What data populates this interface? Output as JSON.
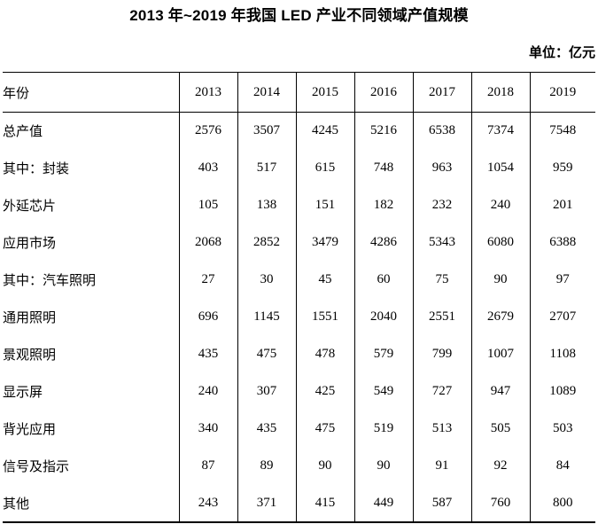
{
  "title": "2013 年~2019 年我国 LED 产业不同领域产值规模",
  "unit_label": "单位：亿元",
  "colors": {
    "text": "#000000",
    "border": "#000000",
    "background": "#ffffff"
  },
  "table": {
    "header": {
      "label": "年份",
      "years": [
        "2013",
        "2014",
        "2015",
        "2016",
        "2017",
        "2018",
        "2019"
      ]
    },
    "rows": [
      {
        "label": "总产值",
        "indent": 0,
        "values": [
          2576,
          3507,
          4245,
          5216,
          6538,
          7374,
          7548
        ]
      },
      {
        "label": "其中：封装",
        "indent": 0,
        "values": [
          403,
          517,
          615,
          748,
          963,
          1054,
          959
        ]
      },
      {
        "label": "外延芯片",
        "indent": 1,
        "values": [
          105,
          138,
          151,
          182,
          232,
          240,
          201
        ]
      },
      {
        "label": "应用市场",
        "indent": 1,
        "values": [
          2068,
          2852,
          3479,
          4286,
          5343,
          6080,
          6388
        ]
      },
      {
        "label": "其中：汽车照明",
        "indent": 1,
        "values": [
          27,
          30,
          45,
          60,
          75,
          90,
          97
        ]
      },
      {
        "label": "通用照明",
        "indent": 2,
        "values": [
          696,
          1145,
          1551,
          2040,
          2551,
          2679,
          2707
        ]
      },
      {
        "label": "景观照明",
        "indent": 2,
        "values": [
          435,
          475,
          478,
          579,
          799,
          1007,
          1108
        ]
      },
      {
        "label": "显示屏",
        "indent": 2,
        "values": [
          240,
          307,
          425,
          549,
          727,
          947,
          1089
        ]
      },
      {
        "label": "背光应用",
        "indent": 2,
        "values": [
          340,
          435,
          475,
          519,
          513,
          505,
          503
        ]
      },
      {
        "label": "信号及指示",
        "indent": 2,
        "values": [
          87,
          89,
          90,
          90,
          91,
          92,
          84
        ]
      },
      {
        "label": "其他",
        "indent": 2,
        "values": [
          243,
          371,
          415,
          449,
          587,
          760,
          800
        ]
      }
    ]
  }
}
